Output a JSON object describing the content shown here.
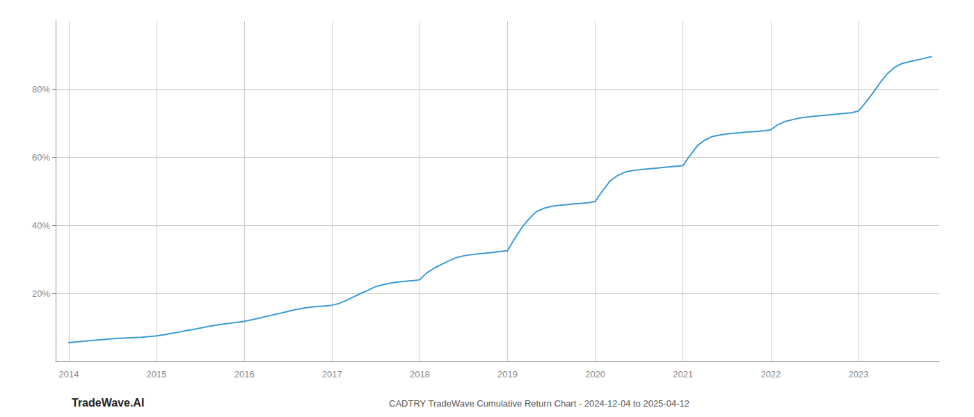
{
  "chart_data": {
    "type": "line",
    "title": "CADTRY TradeWave Cumulative Return Chart - 2024-12-04 to 2025-04-12",
    "annotations": [
      "TradeWave.AI"
    ],
    "color": "#3a9ad9",
    "grid": true,
    "x": [
      2014.0,
      2014.08,
      2014.17,
      2014.25,
      2014.33,
      2014.42,
      2014.5,
      2014.58,
      2014.67,
      2014.75,
      2014.83,
      2014.92,
      2015.0,
      2015.08,
      2015.17,
      2015.25,
      2015.33,
      2015.42,
      2015.5,
      2015.58,
      2015.67,
      2015.75,
      2015.83,
      2015.92,
      2016.0,
      2016.08,
      2016.17,
      2016.25,
      2016.33,
      2016.42,
      2016.5,
      2016.58,
      2016.67,
      2016.75,
      2016.83,
      2016.92,
      2017.0,
      2017.08,
      2017.17,
      2017.25,
      2017.33,
      2017.42,
      2017.5,
      2017.58,
      2017.67,
      2017.75,
      2017.83,
      2017.92,
      2018.0,
      2018.08,
      2018.17,
      2018.25,
      2018.33,
      2018.42,
      2018.5,
      2018.58,
      2018.67,
      2018.75,
      2018.83,
      2018.92,
      2019.0,
      2019.08,
      2019.17,
      2019.25,
      2019.33,
      2019.42,
      2019.5,
      2019.58,
      2019.67,
      2019.75,
      2019.83,
      2019.92,
      2020.0,
      2020.08,
      2020.17,
      2020.25,
      2020.33,
      2020.42,
      2020.5,
      2020.58,
      2020.67,
      2020.75,
      2020.83,
      2020.92,
      2021.0,
      2021.08,
      2021.17,
      2021.25,
      2021.33,
      2021.42,
      2021.5,
      2021.58,
      2021.67,
      2021.75,
      2021.83,
      2021.92,
      2022.0,
      2022.08,
      2022.17,
      2022.25,
      2022.33,
      2022.42,
      2022.5,
      2022.58,
      2022.67,
      2022.75,
      2022.83,
      2022.92,
      2023.0,
      2023.08,
      2023.17,
      2023.25,
      2023.33,
      2023.42,
      2023.5,
      2023.58,
      2023.67,
      2023.75,
      2023.83
    ],
    "values": [
      5.5,
      5.7,
      5.9,
      6.1,
      6.3,
      6.5,
      6.7,
      6.8,
      6.9,
      7.0,
      7.1,
      7.3,
      7.5,
      7.8,
      8.2,
      8.6,
      9.0,
      9.4,
      9.8,
      10.2,
      10.6,
      10.9,
      11.2,
      11.5,
      11.8,
      12.2,
      12.7,
      13.2,
      13.7,
      14.2,
      14.7,
      15.2,
      15.6,
      15.9,
      16.1,
      16.3,
      16.5,
      17.0,
      18.0,
      19.0,
      20.0,
      21.0,
      22.0,
      22.5,
      23.0,
      23.3,
      23.5,
      23.7,
      24.0,
      26.0,
      27.5,
      28.5,
      29.5,
      30.5,
      31.0,
      31.3,
      31.6,
      31.8,
      32.0,
      32.3,
      32.5,
      36.0,
      39.5,
      42.0,
      44.0,
      45.0,
      45.5,
      45.8,
      46.0,
      46.2,
      46.4,
      46.6,
      47.0,
      50.0,
      53.0,
      54.5,
      55.5,
      56.0,
      56.3,
      56.5,
      56.7,
      56.9,
      57.1,
      57.3,
      57.5,
      60.5,
      63.5,
      65.0,
      66.0,
      66.5,
      66.8,
      67.0,
      67.2,
      67.4,
      67.5,
      67.7,
      68.0,
      69.5,
      70.5,
      71.0,
      71.5,
      71.8,
      72.0,
      72.2,
      72.4,
      72.6,
      72.8,
      73.0,
      73.5,
      76.0,
      79.0,
      82.0,
      84.5,
      86.5,
      87.5,
      88.0,
      88.5,
      89.0,
      89.5
    ],
    "xlim": [
      2013.85,
      2023.92
    ],
    "xticks": [
      2014,
      2015,
      2016,
      2017,
      2018,
      2019,
      2020,
      2021,
      2022,
      2023
    ],
    "ylim": [
      0,
      100
    ],
    "yticks": [
      {
        "value": 20,
        "label": "20%"
      },
      {
        "value": 40,
        "label": "40%"
      },
      {
        "value": 60,
        "label": "60%"
      },
      {
        "value": 80,
        "label": "80%"
      }
    ]
  }
}
